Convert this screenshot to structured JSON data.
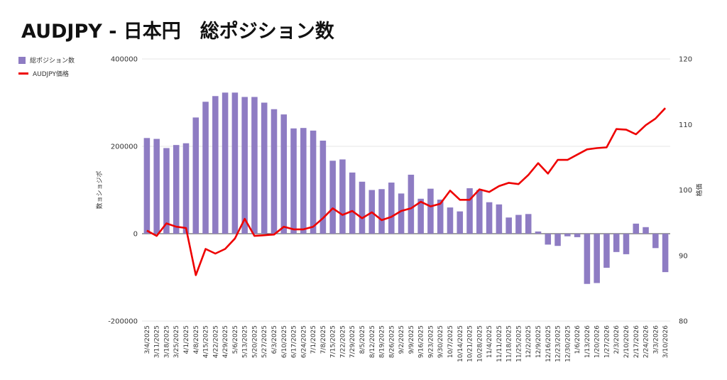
{
  "title": "AUDJPY - 日本円　総ポジション数",
  "legend": {
    "positions_label": "総ポジション数",
    "price_label": "AUDJPY価格"
  },
  "colors": {
    "bars": "#8e7cc3",
    "line": "#ee0000",
    "grid": "#dddddd",
    "axis": "#333333"
  },
  "chart_data": {
    "type": "bar+line",
    "title": "AUDJPY - 日本円　総ポジション数",
    "ylabel_left": "数ョショジポ",
    "ylabel_right": "格価",
    "ylim_left": [
      -200000,
      400000
    ],
    "ylim_right": [
      80,
      120
    ],
    "yticks_left": [
      -200000,
      0,
      200000,
      400000
    ],
    "yticks_right": [
      80,
      90,
      100,
      110,
      120
    ],
    "grid": true,
    "legend_position": "top-left",
    "categories": [
      "3/4/2025",
      "3/11/2025",
      "3/18/2025",
      "3/25/2025",
      "4/1/2025",
      "4/8/2025",
      "4/15/2025",
      "4/22/2025",
      "4/29/2025",
      "5/6/2025",
      "5/13/2025",
      "5/20/2025",
      "5/27/2025",
      "6/3/2025",
      "6/10/2025",
      "6/17/2025",
      "6/24/2025",
      "7/1/2025",
      "7/8/2025",
      "7/15/2025",
      "7/22/2025",
      "7/29/2025",
      "8/5/2025",
      "8/12/2025",
      "8/19/2025",
      "8/26/2025",
      "9/2/2025",
      "9/9/2025",
      "9/16/2025",
      "9/23/2025",
      "9/30/2025",
      "10/7/2025",
      "10/14/2025",
      "10/21/2025",
      "10/28/2025",
      "11/4/2025",
      "11/11/2025",
      "11/18/2025",
      "11/25/2025",
      "12/2/2025",
      "12/9/2025",
      "12/16/2025",
      "12/23/2025",
      "12/30/2025",
      "1/6/2026",
      "1/13/2026",
      "1/20/2026",
      "1/27/2026",
      "2/3/2026",
      "2/10/2026",
      "2/17/2026",
      "2/24/2026",
      "3/3/2026",
      "3/10/2026"
    ],
    "series": [
      {
        "name": "総ポジション数",
        "type": "bar",
        "axis": "left",
        "values": [
          219000,
          217000,
          196000,
          203000,
          207000,
          266000,
          302000,
          315000,
          323000,
          323000,
          313000,
          313000,
          300000,
          285000,
          273000,
          241000,
          242000,
          236000,
          213000,
          167000,
          170000,
          140000,
          119000,
          100000,
          102000,
          117000,
          92000,
          135000,
          80000,
          103000,
          78000,
          60000,
          51000,
          104000,
          100000,
          72000,
          67000,
          37000,
          43000,
          45000,
          5000,
          -25000,
          -28000,
          -6000,
          -8000,
          -115000,
          -113000,
          -78000,
          -42000,
          -47000,
          23000,
          15000,
          -33000,
          -88000
        ]
      },
      {
        "name": "AUDJPY価格",
        "type": "line",
        "axis": "right",
        "values": [
          93.8,
          93.0,
          94.9,
          94.4,
          94.2,
          87.0,
          91.0,
          90.3,
          91.0,
          92.6,
          95.6,
          93.0,
          93.1,
          93.2,
          94.4,
          94.0,
          94.0,
          94.4,
          95.7,
          97.2,
          96.2,
          96.8,
          95.7,
          96.6,
          95.4,
          95.9,
          96.8,
          97.2,
          98.2,
          97.5,
          97.9,
          99.9,
          98.5,
          98.5,
          100.1,
          99.7,
          100.6,
          101.1,
          100.9,
          102.3,
          104.1,
          102.5,
          104.6,
          104.6,
          105.4,
          106.2,
          106.4,
          106.5,
          109.3,
          109.2,
          108.5,
          109.9,
          110.9,
          112.5
        ]
      }
    ]
  }
}
